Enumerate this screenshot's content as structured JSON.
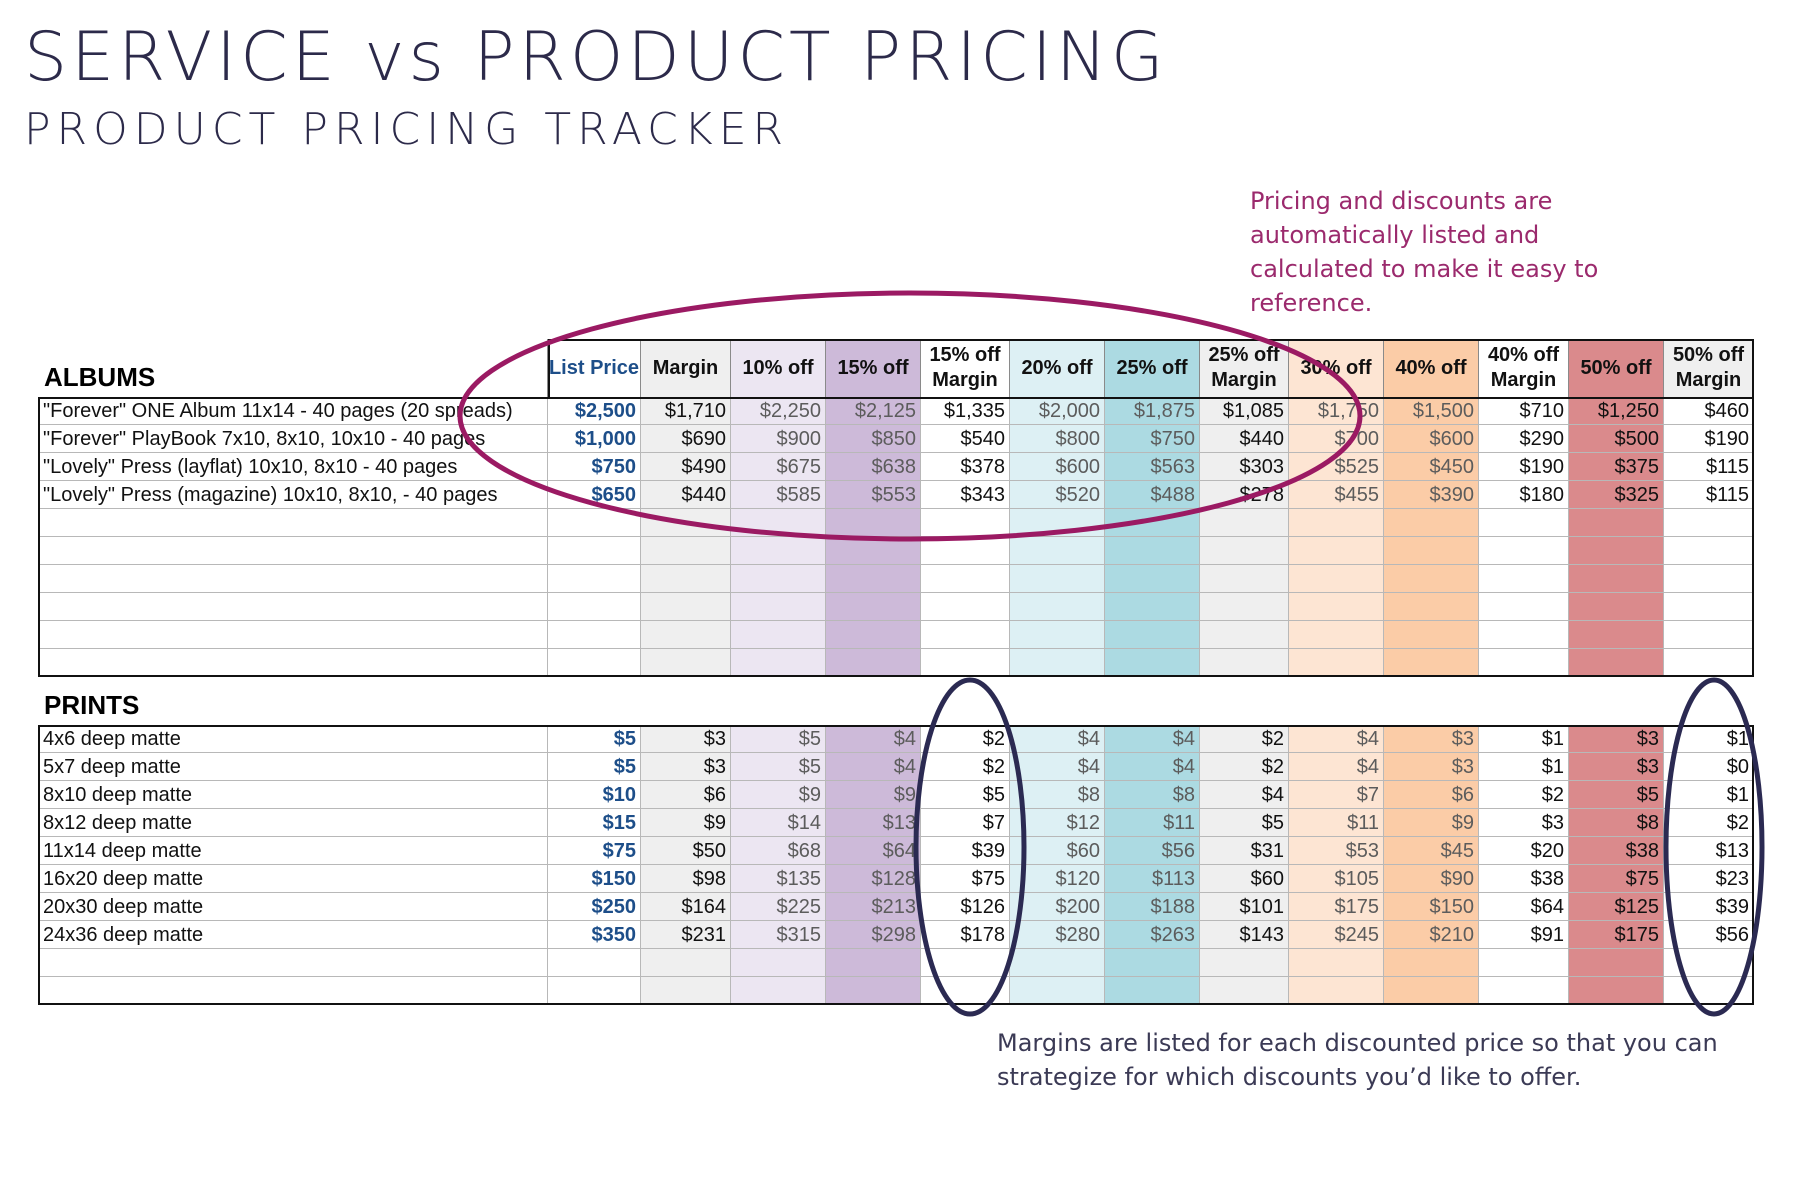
{
  "header": {
    "title": "SERVICE vs PRODUCT PRICING",
    "subtitle": "PRODUCT PRICING TRACKER"
  },
  "annotations": {
    "top_note": "Pricing and discounts are automatically listed and calculated to make it easy to reference.",
    "bottom_note": "Margins are listed for each discounted price so that you can strategize for which discounts you’d like to offer."
  },
  "columns": [
    "List Price",
    "Margin",
    "10% off",
    "15% off",
    "15% off\nMargin",
    "20% off",
    "25% off",
    "25% off\nMargin",
    "30% off",
    "40% off",
    "40% off\nMargin",
    "50% off",
    "50% off\nMargin"
  ],
  "albums": {
    "label": "ALBUMS",
    "rows": [
      {
        "name": "\"Forever\" ONE Album 11x14 - 40 pages (20 spreads)",
        "values": [
          "$2,500",
          "$1,710",
          "$2,250",
          "$2,125",
          "$1,335",
          "$2,000",
          "$1,875",
          "$1,085",
          "$1,750",
          "$1,500",
          "$710",
          "$1,250",
          "$460"
        ]
      },
      {
        "name": "\"Forever\" PlayBook 7x10, 8x10, 10x10 - 40 pages",
        "values": [
          "$1,000",
          "$690",
          "$900",
          "$850",
          "$540",
          "$800",
          "$750",
          "$440",
          "$700",
          "$600",
          "$290",
          "$500",
          "$190"
        ]
      },
      {
        "name": "\"Lovely\" Press (layflat) 10x10, 8x10 - 40 pages",
        "values": [
          "$750",
          "$490",
          "$675",
          "$638",
          "$378",
          "$600",
          "$563",
          "$303",
          "$525",
          "$450",
          "$190",
          "$375",
          "$115"
        ]
      },
      {
        "name": "\"Lovely\" Press (magazine) 10x10, 8x10, - 40 pages",
        "values": [
          "$650",
          "$440",
          "$585",
          "$553",
          "$343",
          "$520",
          "$488",
          "$278",
          "$455",
          "$390",
          "$180",
          "$325",
          "$115"
        ]
      }
    ]
  },
  "prints": {
    "label": "PRINTS",
    "rows": [
      {
        "name": "4x6 deep matte",
        "values": [
          "$5",
          "$3",
          "$5",
          "$4",
          "$2",
          "$4",
          "$4",
          "$2",
          "$4",
          "$3",
          "$1",
          "$3",
          "$1"
        ]
      },
      {
        "name": "5x7 deep matte",
        "values": [
          "$5",
          "$3",
          "$5",
          "$4",
          "$2",
          "$4",
          "$4",
          "$2",
          "$4",
          "$3",
          "$1",
          "$3",
          "$0"
        ]
      },
      {
        "name": "8x10  deep matte",
        "values": [
          "$10",
          "$6",
          "$9",
          "$9",
          "$5",
          "$8",
          "$8",
          "$4",
          "$7",
          "$6",
          "$2",
          "$5",
          "$1"
        ]
      },
      {
        "name": "8x12 deep matte",
        "values": [
          "$15",
          "$9",
          "$14",
          "$13",
          "$7",
          "$12",
          "$11",
          "$5",
          "$11",
          "$9",
          "$3",
          "$8",
          "$2"
        ]
      },
      {
        "name": "11x14 deep matte",
        "values": [
          "$75",
          "$50",
          "$68",
          "$64",
          "$39",
          "$60",
          "$56",
          "$31",
          "$53",
          "$45",
          "$20",
          "$38",
          "$13"
        ]
      },
      {
        "name": "16x20 deep matte",
        "values": [
          "$150",
          "$98",
          "$135",
          "$128",
          "$75",
          "$120",
          "$113",
          "$60",
          "$105",
          "$90",
          "$38",
          "$75",
          "$23"
        ]
      },
      {
        "name": "20x30 deep matte",
        "values": [
          "$250",
          "$164",
          "$225",
          "$213",
          "$126",
          "$200",
          "$188",
          "$101",
          "$175",
          "$150",
          "$64",
          "$125",
          "$39"
        ]
      },
      {
        "name": "24x36 deep matte",
        "values": [
          "$350",
          "$231",
          "$315",
          "$298",
          "$178",
          "$280",
          "$263",
          "$143",
          "$245",
          "$210",
          "$91",
          "$175",
          "$56"
        ]
      }
    ]
  },
  "colors": {
    "title": "#2c2a4a",
    "top_note": "#9b2a6d",
    "ellipse_magenta": "#9b1a63",
    "ellipse_navy": "#2b2a52",
    "list_price": "#1d4e89"
  }
}
